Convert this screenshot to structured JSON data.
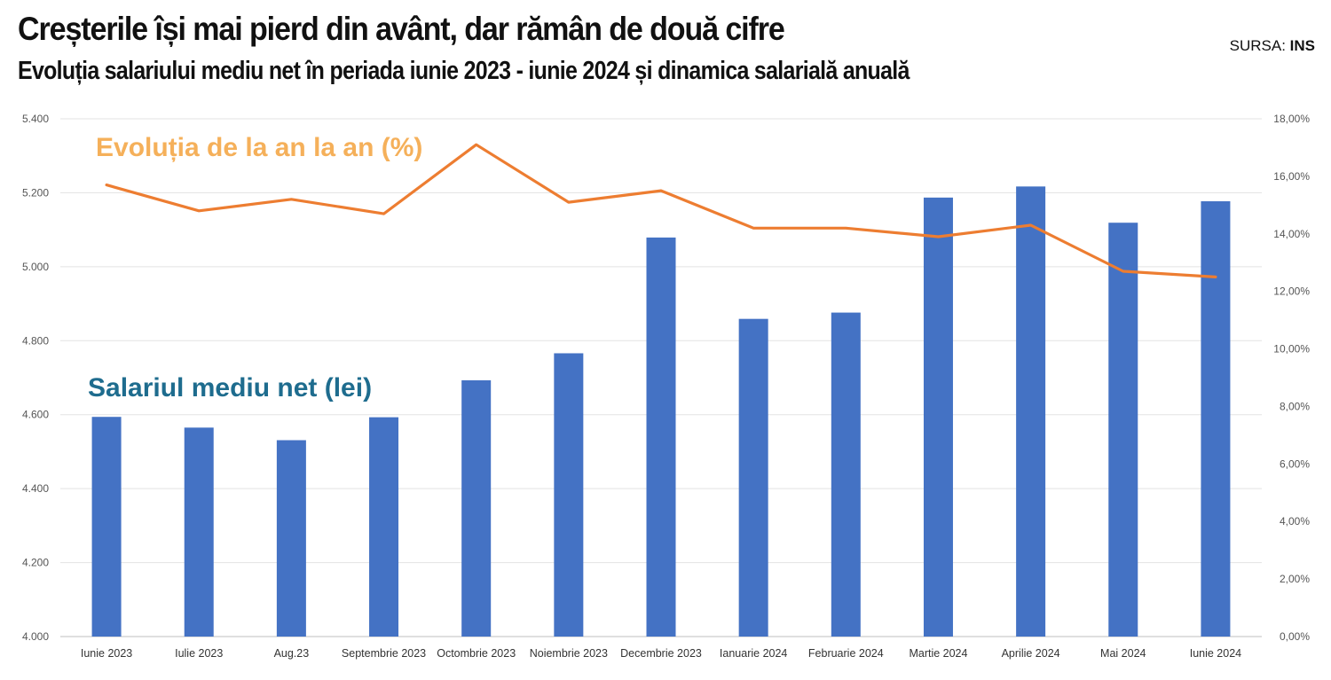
{
  "header": {
    "title": "Creșterile își mai pierd din avânt, dar rămân de două cifre",
    "subtitle": "Evoluția salariului mediu net în periada iunie 2023 - iunie 2024 și dinamica salarială anuală",
    "source_label": "SURSA:",
    "source_value": "INS"
  },
  "chart_data": {
    "type": "bar",
    "categories": [
      "Iunie 2023",
      "Iulie 2023",
      "Aug.23",
      "Septembrie 2023",
      "Octombrie 2023",
      "Noiembrie 2023",
      "Decembrie 2023",
      "Ianuarie 2024",
      "Februarie 2024",
      "Martie 2024",
      "Aprilie 2024",
      "Mai 2024",
      "Iunie 2024"
    ],
    "series": [
      {
        "name": "Salariul mediu net (lei)",
        "type": "bar",
        "axis": "left",
        "color": "#4472c4",
        "values": [
          4594,
          4565,
          4531,
          4593,
          4693,
          4766,
          5079,
          4859,
          4876,
          5187,
          5217,
          5119,
          5177
        ]
      },
      {
        "name": "Evoluția de la an la an (%)",
        "type": "line",
        "axis": "right",
        "color": "#ed7d31",
        "values": [
          15.7,
          14.8,
          15.2,
          14.7,
          17.1,
          15.1,
          15.5,
          14.2,
          14.2,
          13.9,
          14.3,
          12.7,
          12.5
        ]
      }
    ],
    "y_left": {
      "ylim": [
        4000,
        5400
      ],
      "ticks": [
        "4.000",
        "4.200",
        "4.400",
        "4.600",
        "4.800",
        "5.000",
        "5.200",
        "5.400"
      ]
    },
    "y_right": {
      "ylim": [
        0,
        18
      ],
      "ticks": [
        "0,00%",
        "2,00%",
        "4,00%",
        "6,00%",
        "8,00%",
        "10,00%",
        "12,00%",
        "14,00%",
        "16,00%",
        "18,00%"
      ]
    },
    "grid": true,
    "annotations": {
      "line_label": "Evoluția de la an la an (%)",
      "bar_label": "Salariul mediu net (lei)"
    }
  }
}
